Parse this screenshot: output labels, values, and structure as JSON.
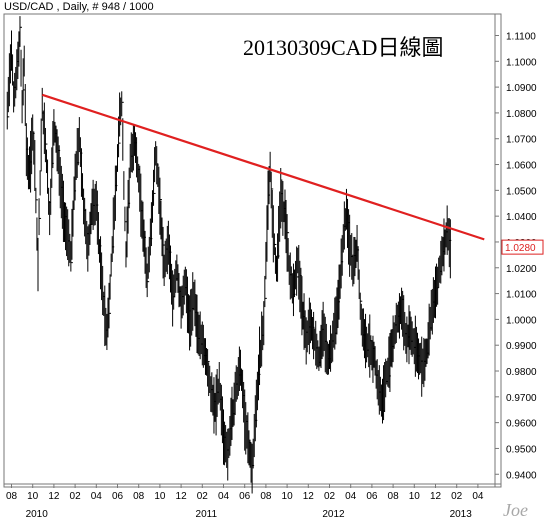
{
  "header": "USD/CAD , Daily, # 948 / 1000",
  "signature": "Joe",
  "chart_data": {
    "type": "line",
    "title": "20130309CAD日線圖",
    "symbol": "USD/CAD",
    "interval": "Daily",
    "ylim": [
      0.937,
      1.116
    ],
    "yticks": [
      "1.1100",
      "1.1000",
      "1.0900",
      "1.0800",
      "1.0700",
      "1.0600",
      "1.0500",
      "1.0400",
      "1.0300",
      "1.0200",
      "1.0100",
      "1.0000",
      "0.9900",
      "0.9800",
      "0.9700",
      "0.9600",
      "0.9500",
      "0.9400"
    ],
    "last_price": "1.0280",
    "month_ticks": [
      "08",
      "10",
      "12",
      "02",
      "04",
      "06",
      "08",
      "10",
      "12",
      "02",
      "04",
      "06",
      "08",
      "10",
      "12",
      "02",
      "04",
      "06",
      "08",
      "10",
      "12",
      "02",
      "04"
    ],
    "year_labels": [
      {
        "label": "2010",
        "month_index": 1
      },
      {
        "label": "2011",
        "month_index": 9
      },
      {
        "label": "2012",
        "month_index": 15
      },
      {
        "label": "2013",
        "month_index": 21
      }
    ],
    "x_range": [
      -0.3,
      22.3
    ],
    "series": [
      {
        "style": "bars",
        "color": "#000000",
        "points": [
          [
            -0.2,
            1.08
          ],
          [
            0.0,
            1.105
          ],
          [
            0.1,
            1.088
          ],
          [
            0.2,
            1.092
          ],
          [
            0.3,
            1.101
          ],
          [
            0.4,
            1.111
          ],
          [
            0.5,
            1.082
          ],
          [
            0.6,
            1.1
          ],
          [
            0.7,
            1.066
          ],
          [
            0.8,
            1.057
          ],
          [
            0.9,
            1.061
          ],
          [
            1.0,
            1.073
          ],
          [
            1.1,
            1.061
          ],
          [
            1.2,
            1.032
          ],
          [
            1.25,
            1.021
          ],
          [
            1.3,
            1.04
          ],
          [
            1.45,
            1.082
          ],
          [
            1.6,
            1.068
          ],
          [
            1.8,
            1.04
          ],
          [
            2.0,
            1.076
          ],
          [
            2.2,
            1.063
          ],
          [
            2.4,
            1.045
          ],
          [
            2.6,
            1.034
          ],
          [
            2.8,
            1.024
          ],
          [
            3.0,
            1.056
          ],
          [
            3.2,
            1.071
          ],
          [
            3.4,
            1.044
          ],
          [
            3.6,
            1.027
          ],
          [
            3.8,
            1.043
          ],
          [
            4.0,
            1.045
          ],
          [
            4.2,
            1.021
          ],
          [
            4.4,
            1.001
          ],
          [
            4.5,
            0.995
          ],
          [
            4.6,
            1.005
          ],
          [
            4.8,
            1.035
          ],
          [
            5.0,
            1.062
          ],
          [
            5.1,
            1.078
          ],
          [
            5.2,
            1.084
          ],
          [
            5.3,
            1.052
          ],
          [
            5.4,
            1.025
          ],
          [
            5.6,
            1.061
          ],
          [
            5.8,
            1.07
          ],
          [
            6.0,
            1.054
          ],
          [
            6.2,
            1.035
          ],
          [
            6.4,
            1.016
          ],
          [
            6.6,
            1.037
          ],
          [
            6.8,
            1.065
          ],
          [
            7.0,
            1.045
          ],
          [
            7.2,
            1.02
          ],
          [
            7.4,
            1.03
          ],
          [
            7.6,
            1.008
          ],
          [
            7.8,
            1.02
          ],
          [
            8.0,
            1.005
          ],
          [
            8.2,
            1.014
          ],
          [
            8.4,
            0.998
          ],
          [
            8.6,
            1.008
          ],
          [
            8.8,
            0.995
          ],
          [
            9.0,
            0.99
          ],
          [
            9.2,
            0.985
          ],
          [
            9.4,
            0.972
          ],
          [
            9.6,
            0.965
          ],
          [
            9.8,
            0.975
          ],
          [
            10.0,
            0.955
          ],
          [
            10.2,
            0.948
          ],
          [
            10.4,
            0.962
          ],
          [
            10.6,
            0.975
          ],
          [
            10.8,
            0.982
          ],
          [
            11.0,
            0.962
          ],
          [
            11.2,
            0.95
          ],
          [
            11.35,
            0.943
          ],
          [
            11.5,
            0.96
          ],
          [
            11.7,
            0.985
          ],
          [
            11.9,
            0.998
          ],
          [
            12.0,
            1.022
          ],
          [
            12.1,
            1.046
          ],
          [
            12.2,
            1.06
          ],
          [
            12.3,
            1.04
          ],
          [
            12.5,
            1.018
          ],
          [
            12.7,
            1.048
          ],
          [
            12.9,
            1.04
          ],
          [
            13.1,
            1.02
          ],
          [
            13.3,
            1.01
          ],
          [
            13.5,
            1.022
          ],
          [
            13.7,
            1.005
          ],
          [
            13.9,
            0.993
          ],
          [
            14.1,
            0.998
          ],
          [
            14.3,
            0.992
          ],
          [
            14.5,
            0.985
          ],
          [
            14.7,
            0.997
          ],
          [
            14.9,
            0.985
          ],
          [
            15.1,
            0.99
          ],
          [
            15.3,
            1.0
          ],
          [
            15.5,
            1.015
          ],
          [
            15.7,
            1.035
          ],
          [
            15.8,
            1.042
          ],
          [
            15.9,
            1.032
          ],
          [
            16.1,
            1.02
          ],
          [
            16.3,
            1.028
          ],
          [
            16.5,
            1.0
          ],
          [
            16.7,
            0.99
          ],
          [
            16.9,
            0.99
          ],
          [
            17.1,
            0.985
          ],
          [
            17.3,
            0.975
          ],
          [
            17.5,
            0.968
          ],
          [
            17.6,
            0.975
          ],
          [
            17.8,
            0.982
          ],
          [
            18.0,
            0.992
          ],
          [
            18.2,
            1.0
          ],
          [
            18.4,
            1.005
          ],
          [
            18.6,
            0.992
          ],
          [
            18.8,
            0.995
          ],
          [
            19.0,
            0.99
          ],
          [
            19.2,
            0.985
          ],
          [
            19.4,
            0.982
          ],
          [
            19.6,
            0.988
          ],
          [
            19.8,
            1.002
          ],
          [
            20.0,
            1.01
          ],
          [
            20.2,
            1.02
          ],
          [
            20.4,
            1.03
          ],
          [
            20.55,
            1.034
          ],
          [
            20.7,
            1.028
          ]
        ]
      },
      {
        "style": "trendline",
        "color": "#e02020",
        "points": [
          [
            1.45,
            1.087
          ],
          [
            22.3,
            1.031
          ]
        ]
      }
    ]
  }
}
